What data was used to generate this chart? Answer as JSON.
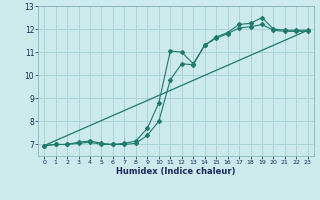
{
  "xlabel": "Humidex (Indice chaleur)",
  "background_color": "#cce9eb",
  "grid_color": "#aad4d8",
  "line_color": "#1e7a6a",
  "xlim": [
    -0.5,
    23.5
  ],
  "ylim": [
    6.5,
    13.0
  ],
  "yticks": [
    7,
    8,
    9,
    10,
    11,
    12,
    13
  ],
  "xticks": [
    0,
    1,
    2,
    3,
    4,
    5,
    6,
    7,
    8,
    9,
    10,
    11,
    12,
    13,
    14,
    15,
    16,
    17,
    18,
    19,
    20,
    21,
    22,
    23
  ],
  "series1_x": [
    0,
    1,
    2,
    3,
    4,
    5,
    6,
    7,
    8,
    9,
    10,
    11,
    12,
    13,
    14,
    15,
    16,
    17,
    18,
    19,
    20,
    21,
    22,
    23
  ],
  "series1_y": [
    6.95,
    7.0,
    7.0,
    7.1,
    7.15,
    7.05,
    7.0,
    7.05,
    7.15,
    7.7,
    8.8,
    11.05,
    11.0,
    10.5,
    11.3,
    11.65,
    11.85,
    12.2,
    12.25,
    12.5,
    12.0,
    11.95,
    11.95,
    11.95
  ],
  "series2_x": [
    0,
    1,
    2,
    3,
    4,
    5,
    6,
    7,
    8,
    9,
    10,
    11,
    12,
    13,
    14,
    15,
    16,
    17,
    18,
    19,
    20,
    21,
    22,
    23
  ],
  "series2_y": [
    6.95,
    7.0,
    7.0,
    7.05,
    7.1,
    7.0,
    7.0,
    7.0,
    7.05,
    7.4,
    8.0,
    9.8,
    10.5,
    10.45,
    11.3,
    11.6,
    11.8,
    12.05,
    12.1,
    12.2,
    11.95,
    11.9,
    11.9,
    11.9
  ],
  "series3_x": [
    0,
    23
  ],
  "series3_y": [
    6.95,
    11.95
  ]
}
